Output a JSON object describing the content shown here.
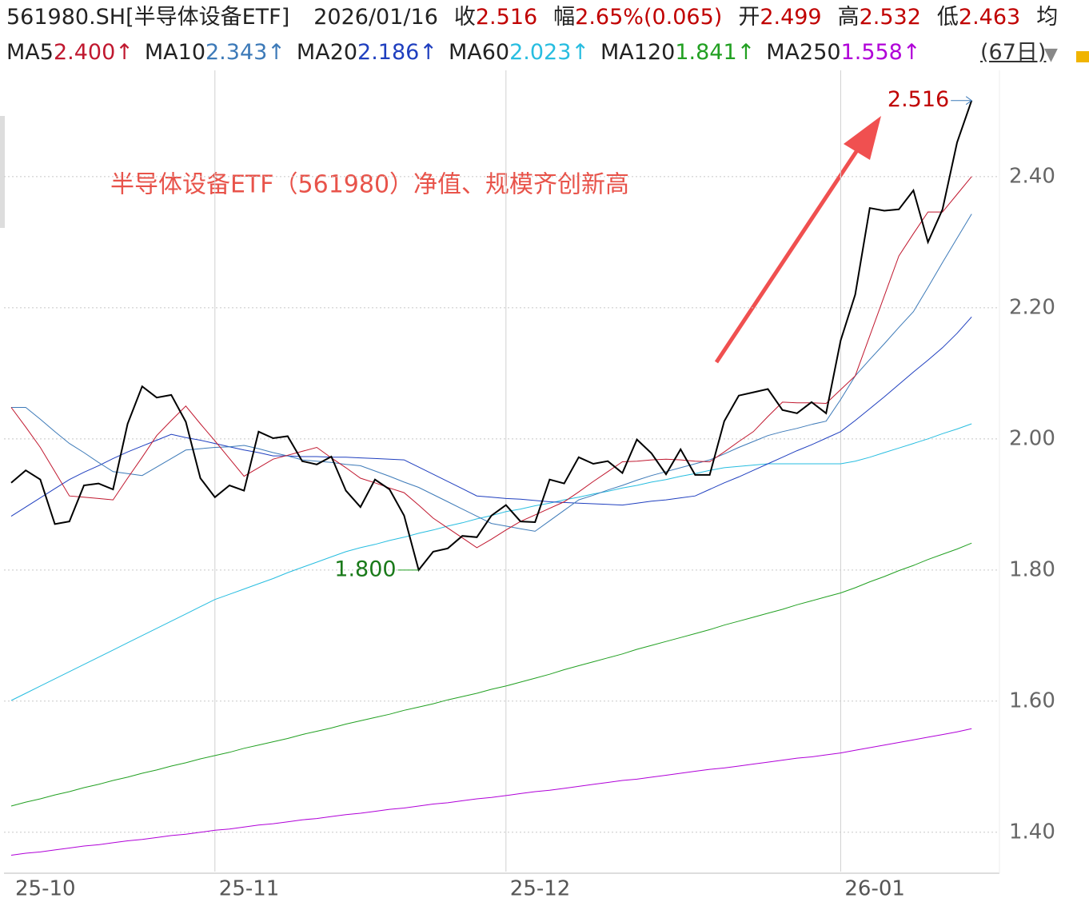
{
  "header": {
    "title": "561980.SH[半导体设备ETF]",
    "date": "2026/01/16",
    "quotes": [
      {
        "label": "收",
        "value": "2.516"
      },
      {
        "label": "幅",
        "value": "2.65%(0.065)"
      },
      {
        "label": "开",
        "value": "2.499"
      },
      {
        "label": "高",
        "value": "2.532"
      },
      {
        "label": "低",
        "value": "2.463"
      }
    ],
    "trailing_label": "均",
    "period": "(67日)"
  },
  "chart_data": {
    "type": "line",
    "annotation": "半导体设备ETF（561980）净值、规模齐创新高",
    "categories": [
      "25-10",
      null,
      null,
      null,
      null,
      null,
      null,
      null,
      null,
      null,
      null,
      null,
      null,
      null,
      "25-11",
      null,
      null,
      null,
      null,
      null,
      null,
      null,
      null,
      null,
      null,
      null,
      null,
      null,
      null,
      null,
      null,
      null,
      null,
      null,
      "25-12",
      null,
      null,
      null,
      null,
      null,
      null,
      null,
      null,
      null,
      null,
      null,
      null,
      null,
      null,
      null,
      null,
      null,
      null,
      null,
      null,
      null,
      null,
      "26-01",
      null,
      null,
      null,
      null,
      null,
      null,
      null,
      null,
      null
    ],
    "ylim": [
      1.34,
      2.562
    ],
    "yticks": [
      {
        "value": 1.4,
        "label": "1.40"
      },
      {
        "value": 1.6,
        "label": "1.60"
      },
      {
        "value": 1.8,
        "label": "1.80"
      },
      {
        "value": 2.0,
        "label": "2.00"
      },
      {
        "value": 2.2,
        "label": "2.20"
      },
      {
        "value": 2.4,
        "label": "2.40"
      }
    ],
    "grid": true,
    "high_marker": {
      "index": 66,
      "value": 2.516
    },
    "low_marker": {
      "index": 28,
      "value": 1.8,
      "label": "1.800"
    },
    "series": [
      {
        "color": "#000000",
        "width": 2,
        "values": [
          1.933,
          1.952,
          1.938,
          1.87,
          1.874,
          1.929,
          1.932,
          1.923,
          2.023,
          2.08,
          2.063,
          2.067,
          2.026,
          1.94,
          1.911,
          1.929,
          1.921,
          2.011,
          2.001,
          2.004,
          1.966,
          1.961,
          1.973,
          1.921,
          1.896,
          1.938,
          1.923,
          1.883,
          1.8,
          1.828,
          1.833,
          1.852,
          1.85,
          1.883,
          1.899,
          1.874,
          1.873,
          1.938,
          1.932,
          1.972,
          1.962,
          1.966,
          1.948,
          1.999,
          1.978,
          1.946,
          1.984,
          1.945,
          1.945,
          2.027,
          2.066,
          2.071,
          2.076,
          2.044,
          2.039,
          2.056,
          2.039,
          2.15,
          2.22,
          2.352,
          2.348,
          2.35,
          2.379,
          2.3,
          2.35,
          2.452,
          2.516
        ]
      },
      {
        "name": "MA5",
        "legend_value": "2.400↑",
        "color": "#c0182f",
        "width": 1,
        "values": [
          2.048,
          2.018,
          1.987,
          1.95,
          1.913,
          1.911,
          1.909,
          1.907,
          1.94,
          1.972,
          2.005,
          2.028,
          2.05,
          2.023,
          1.997,
          1.97,
          1.943,
          1.956,
          1.969,
          1.975,
          1.981,
          1.987,
          1.971,
          1.956,
          1.94,
          1.933,
          1.925,
          1.918,
          1.899,
          1.879,
          1.864,
          1.849,
          1.834,
          1.847,
          1.861,
          1.874,
          1.884,
          1.894,
          1.904,
          1.919,
          1.935,
          1.95,
          1.965,
          1.966,
          1.968,
          1.969,
          1.968,
          1.966,
          1.965,
          1.98,
          1.996,
          2.011,
          2.034,
          2.056,
          2.055,
          2.055,
          2.054,
          2.075,
          2.096,
          2.157,
          2.218,
          2.279,
          2.313,
          2.346,
          2.346,
          2.373,
          2.4
        ]
      },
      {
        "name": "MA10",
        "legend_value": "2.343↑",
        "color": "#3d7ab8",
        "width": 1,
        "values": [
          2.048,
          2.048,
          2.03,
          2.011,
          1.993,
          1.979,
          1.964,
          1.95,
          1.947,
          1.944,
          1.957,
          1.97,
          1.983,
          1.985,
          1.987,
          1.988,
          1.99,
          1.985,
          1.979,
          1.974,
          1.968,
          1.966,
          1.964,
          1.961,
          1.959,
          1.951,
          1.943,
          1.934,
          1.926,
          1.915,
          1.904,
          1.893,
          1.882,
          1.871,
          1.867,
          1.863,
          1.859,
          1.875,
          1.891,
          1.907,
          1.914,
          1.922,
          1.929,
          1.937,
          1.944,
          1.95,
          1.956,
          1.962,
          1.968,
          1.977,
          1.987,
          1.996,
          2.005,
          2.011,
          2.016,
          2.022,
          2.027,
          2.06,
          2.096,
          2.121,
          2.145,
          2.17,
          2.194,
          2.231,
          2.269,
          2.306,
          2.343
        ]
      },
      {
        "name": "MA20",
        "legend_value": "2.186↑",
        "color": "#1f3fbf",
        "width": 1,
        "values": [
          1.882,
          1.896,
          1.91,
          1.924,
          1.938,
          1.949,
          1.959,
          1.97,
          1.98,
          1.989,
          1.998,
          2.007,
          2.002,
          1.998,
          1.993,
          1.988,
          1.983,
          1.979,
          1.974,
          1.974,
          1.973,
          1.973,
          1.972,
          1.972,
          1.971,
          1.97,
          1.969,
          1.968,
          1.957,
          1.946,
          1.935,
          1.924,
          1.913,
          1.911,
          1.909,
          1.908,
          1.906,
          1.904,
          1.903,
          1.902,
          1.901,
          1.9,
          1.899,
          1.902,
          1.905,
          1.907,
          1.91,
          1.913,
          1.923,
          1.933,
          1.942,
          1.952,
          1.962,
          1.972,
          1.982,
          1.991,
          2.001,
          2.011,
          2.028,
          2.046,
          2.064,
          2.083,
          2.102,
          2.12,
          2.139,
          2.161,
          2.186
        ]
      },
      {
        "name": "MA60",
        "legend_value": "2.023↑",
        "color": "#27bde0",
        "width": 1,
        "values": [
          1.601,
          1.612,
          1.623,
          1.634,
          1.645,
          1.656,
          1.667,
          1.678,
          1.689,
          1.7,
          1.711,
          1.722,
          1.733,
          1.744,
          1.755,
          1.763,
          1.771,
          1.779,
          1.787,
          1.796,
          1.804,
          1.812,
          1.82,
          1.828,
          1.834,
          1.839,
          1.845,
          1.85,
          1.856,
          1.861,
          1.867,
          1.872,
          1.878,
          1.883,
          1.889,
          1.893,
          1.898,
          1.902,
          1.907,
          1.911,
          1.916,
          1.92,
          1.925,
          1.929,
          1.934,
          1.938,
          1.943,
          1.947,
          1.952,
          1.956,
          1.958,
          1.96,
          1.962,
          1.962,
          1.962,
          1.962,
          1.962,
          1.962,
          1.966,
          1.972,
          1.979,
          1.986,
          1.993,
          2.0,
          2.008,
          2.015,
          2.023
        ]
      },
      {
        "name": "MA120",
        "legend_value": "1.841↑",
        "color": "#22a022",
        "width": 1,
        "values": [
          1.44,
          1.446,
          1.451,
          1.457,
          1.462,
          1.468,
          1.473,
          1.479,
          1.484,
          1.49,
          1.495,
          1.501,
          1.506,
          1.512,
          1.517,
          1.522,
          1.528,
          1.533,
          1.538,
          1.543,
          1.549,
          1.554,
          1.559,
          1.565,
          1.57,
          1.575,
          1.58,
          1.586,
          1.591,
          1.596,
          1.602,
          1.607,
          1.612,
          1.618,
          1.623,
          1.629,
          1.635,
          1.641,
          1.648,
          1.654,
          1.66,
          1.666,
          1.672,
          1.679,
          1.685,
          1.691,
          1.697,
          1.703,
          1.709,
          1.716,
          1.722,
          1.728,
          1.734,
          1.74,
          1.747,
          1.753,
          1.759,
          1.765,
          1.773,
          1.782,
          1.79,
          1.799,
          1.807,
          1.816,
          1.824,
          1.832,
          1.841
        ]
      },
      {
        "name": "MA250",
        "legend_value": "1.558↑",
        "color": "#b000d8",
        "width": 1,
        "values": [
          1.365,
          1.368,
          1.37,
          1.373,
          1.376,
          1.379,
          1.381,
          1.384,
          1.387,
          1.389,
          1.392,
          1.395,
          1.397,
          1.4,
          1.403,
          1.405,
          1.408,
          1.411,
          1.413,
          1.416,
          1.419,
          1.421,
          1.424,
          1.427,
          1.429,
          1.432,
          1.435,
          1.437,
          1.44,
          1.443,
          1.445,
          1.448,
          1.451,
          1.453,
          1.456,
          1.459,
          1.462,
          1.464,
          1.467,
          1.47,
          1.473,
          1.476,
          1.479,
          1.481,
          1.484,
          1.487,
          1.49,
          1.493,
          1.496,
          1.498,
          1.501,
          1.504,
          1.507,
          1.51,
          1.513,
          1.515,
          1.518,
          1.521,
          1.525,
          1.529,
          1.533,
          1.537,
          1.541,
          1.545,
          1.549,
          1.553,
          1.558
        ]
      }
    ]
  }
}
